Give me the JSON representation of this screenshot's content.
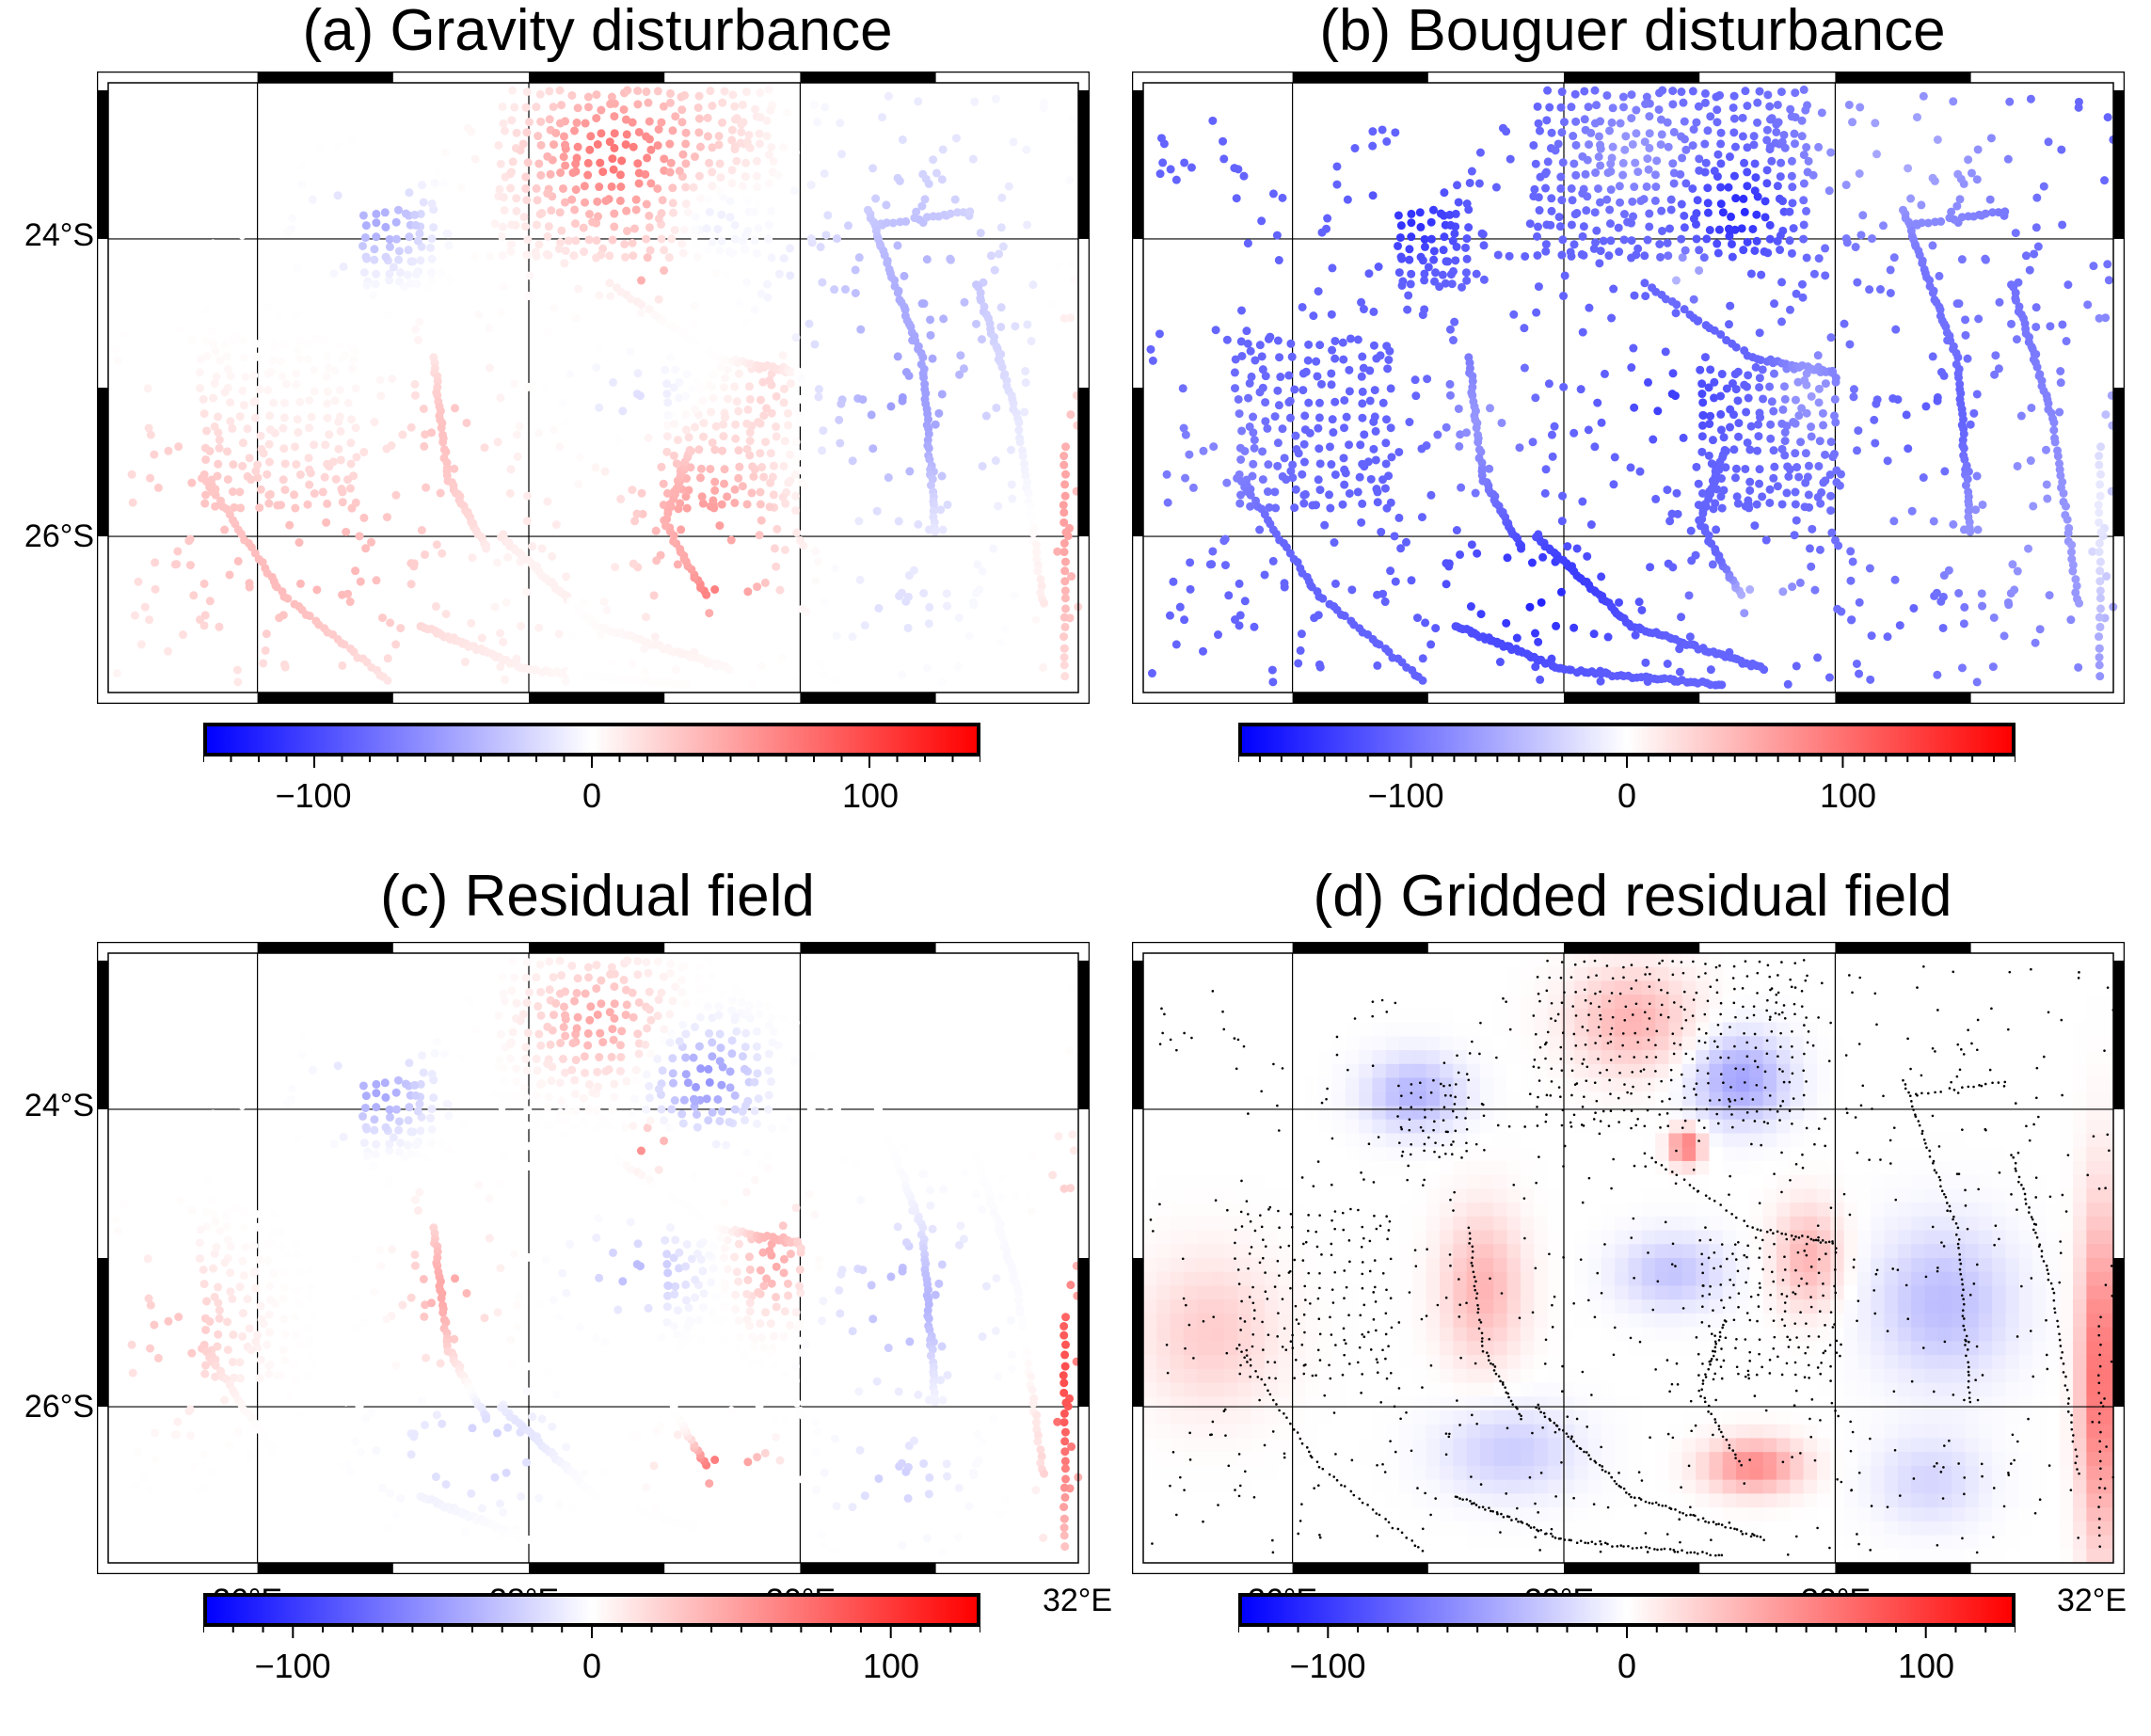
{
  "figure": {
    "region": {
      "lon_min": 24.9,
      "lon_max": 32.05,
      "lat_min": -27.05,
      "lat_max": -22.95
    },
    "panels": [
      {
        "id": "a",
        "title": "(a) Gravity disturbance",
        "kind": "scatter",
        "data": "observed",
        "lat_labels": [
          "24°S",
          "26°S"
        ],
        "lon_labels": [],
        "colorbar": {
          "labels": [
            "−100",
            "0",
            "100"
          ],
          "values": [
            -100,
            0,
            100
          ],
          "range": [
            -140,
            140
          ],
          "colors": [
            "#0000ff",
            "#ffffff",
            "#ff0000"
          ]
        }
      },
      {
        "id": "b",
        "title": "(b) Bouguer disturbance",
        "kind": "scatter",
        "data": "bouguer",
        "lat_labels": [],
        "lon_labels": [],
        "colorbar": {
          "labels": [
            "−100",
            "0",
            "100"
          ],
          "values": [
            -100,
            0,
            100
          ],
          "range": [
            -180,
            180
          ],
          "colors": [
            "#0000ff",
            "#ffffff",
            "#ff0000"
          ]
        }
      },
      {
        "id": "c",
        "title": "(c) Residual field",
        "kind": "scatter",
        "data": "residual",
        "lat_labels": [
          "24°S",
          "26°S"
        ],
        "lon_labels": [
          "26°E",
          "28°E",
          "30°E",
          "32°E"
        ],
        "colorbar": {
          "labels": [
            "−100",
            "0",
            "100"
          ],
          "values": [
            -100,
            0,
            100
          ],
          "range": [
            -130,
            130
          ],
          "colors": [
            "#0000ff",
            "#ffffff",
            "#ff0000"
          ]
        }
      },
      {
        "id": "d",
        "title": "(d) Gridded residual field",
        "kind": "grid",
        "data": "residual",
        "lat_labels": [],
        "lon_labels": [
          "26°E",
          "28°E",
          "30°E",
          "32°E"
        ],
        "colorbar": {
          "labels": [
            "−100",
            "0",
            "100"
          ],
          "values": [
            -100,
            0,
            100
          ],
          "range": [
            -130,
            130
          ],
          "colors": [
            "#0000ff",
            "#ffffff",
            "#ff0000"
          ]
        }
      }
    ],
    "gridlines": {
      "lon": [
        26,
        28,
        30
      ],
      "lat": [
        -24,
        -26
      ]
    },
    "point_color": "#000000",
    "frame_color": "#000000"
  }
}
